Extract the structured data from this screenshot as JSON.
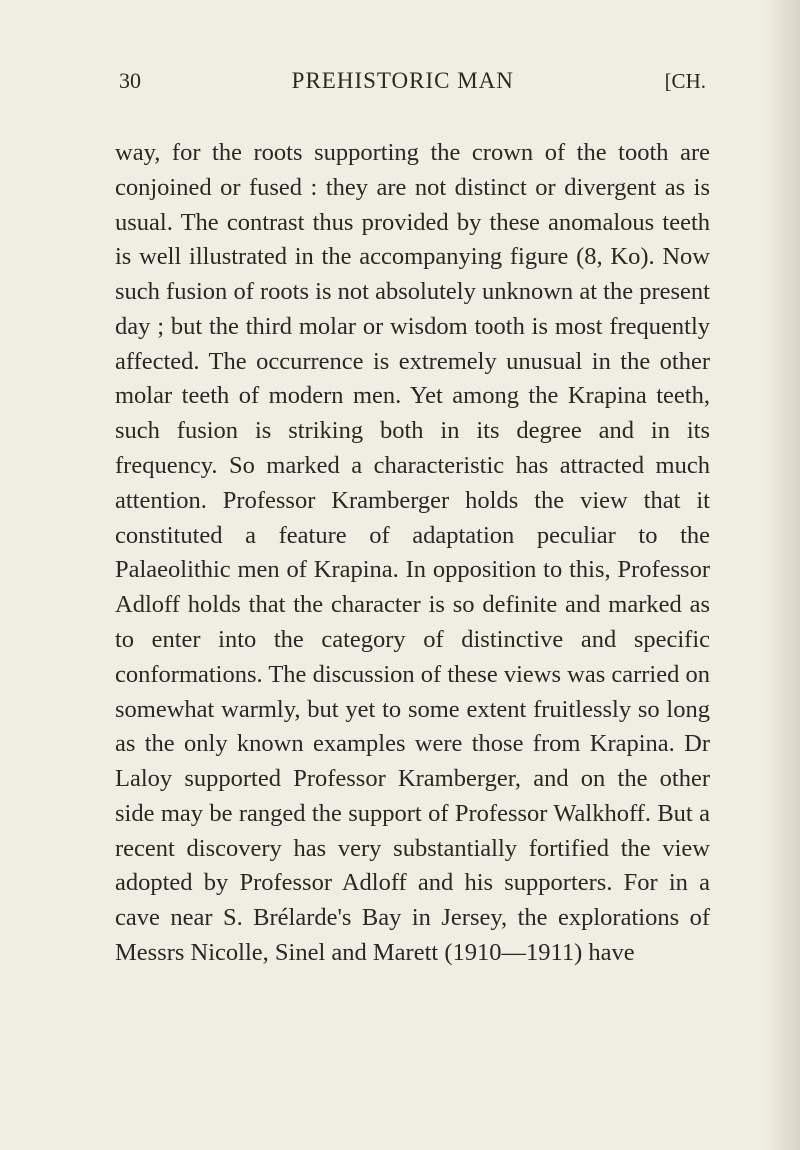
{
  "page": {
    "number": "30",
    "running_title": "PREHISTORIC MAN",
    "chapter_mark": "[CH.",
    "background_color": "#f0ede2",
    "text_color": "#2a2824",
    "body_fontsize": 24.5,
    "header_fontsize": 22,
    "line_height": 1.42
  },
  "content": {
    "paragraph": "way, for the roots supporting the crown of the tooth are conjoined or fused : they are not distinct or divergent as is usual. The contrast thus provided by these anomalous teeth is well illustrated in the accompanying figure (8, Ko). Now such fusion of roots is not absolutely unknown at the present day ; but the third molar or wisdom tooth is most frequently affected. The occurrence is extremely unusual in the other molar teeth of modern men. Yet among the Krapina teeth, such fusion is striking both in its degree and in its frequency. So marked a characteristic has attracted much attention. Professor Kramberger holds the view that it constituted a feature of adaptation peculiar to the Palaeolithic men of Krapina. In opposition to this, Professor Adloff holds that the character is so definite and marked as to enter into the category of distinctive and specific conformations. The discussion of these views was carried on somewhat warmly, but yet to some extent fruitlessly so long as the only known examples were those from Krapina. Dr Laloy supported Professor Kramberger, and on the other side may be ranged the support of Professor Walkhoff. But a recent discovery has very substantially fortified the view adopted by Professor Adloff and his supporters. For in a cave near S. Brélarde's Bay in Jersey, the explorations of Messrs Nicolle, Sinel and Marett (1910—1911) have"
  }
}
